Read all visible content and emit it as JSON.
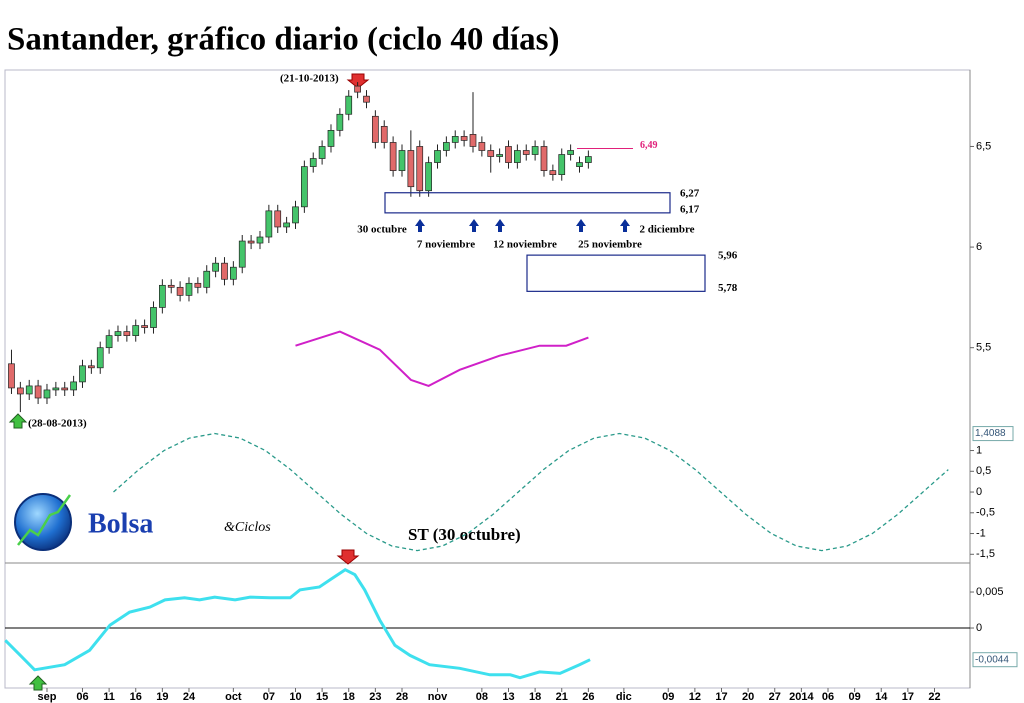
{
  "logo": {
    "name": "Bolsa",
    "suffix": "&Ciclos"
  },
  "chart_data": [
    {
      "type": "candlestick",
      "title": "Santander, gráfico diario (ciclo 40 días)",
      "up_color": "#44c46a",
      "down_color": "#e06a6a",
      "x": [
        -1,
        0,
        1,
        2,
        3,
        4,
        5,
        6,
        7,
        8,
        9,
        10,
        11,
        12,
        13,
        14,
        15,
        16,
        17,
        18,
        19,
        20,
        21,
        22,
        23,
        24,
        25,
        26,
        27,
        28,
        29,
        30,
        31,
        32,
        33,
        34,
        35,
        36,
        37,
        38,
        39,
        40,
        41,
        42,
        43,
        44,
        45,
        46,
        47,
        48,
        49,
        50,
        51,
        52,
        53,
        54,
        55,
        56,
        57,
        58,
        59,
        60,
        61,
        62,
        63,
        64
      ],
      "open": [
        5.42,
        5.3,
        5.27,
        5.31,
        5.25,
        5.29,
        5.3,
        5.29,
        5.33,
        5.41,
        5.4,
        5.5,
        5.56,
        5.58,
        5.56,
        5.61,
        5.6,
        5.7,
        5.81,
        5.8,
        5.76,
        5.82,
        5.8,
        5.88,
        5.92,
        5.84,
        5.9,
        6.03,
        6.02,
        6.05,
        6.18,
        6.1,
        6.12,
        6.2,
        6.4,
        6.44,
        6.5,
        6.58,
        6.66,
        6.8,
        6.75,
        6.65,
        6.6,
        6.52,
        6.38,
        6.48,
        6.5,
        6.28,
        6.42,
        6.48,
        6.52,
        6.55,
        6.56,
        6.52,
        6.48,
        6.45,
        6.5,
        6.42,
        6.48,
        6.46,
        6.5,
        6.38,
        6.36,
        6.46,
        6.4,
        6.42
      ],
      "high": [
        5.49,
        5.33,
        5.34,
        5.34,
        5.32,
        5.33,
        5.33,
        5.36,
        5.44,
        5.44,
        5.53,
        5.59,
        5.61,
        5.61,
        5.64,
        5.64,
        5.73,
        5.84,
        5.84,
        5.83,
        5.85,
        5.85,
        5.91,
        5.95,
        5.95,
        5.93,
        6.06,
        6.06,
        6.08,
        6.21,
        6.21,
        6.15,
        6.23,
        6.43,
        6.47,
        6.53,
        6.61,
        6.69,
        6.78,
        6.82,
        6.78,
        6.68,
        6.63,
        6.55,
        6.51,
        6.58,
        6.53,
        6.45,
        6.51,
        6.55,
        6.58,
        6.58,
        6.77,
        6.55,
        6.51,
        6.49,
        6.53,
        6.51,
        6.51,
        6.53,
        6.53,
        6.41,
        6.49,
        6.51,
        6.45,
        6.48
      ],
      "low": [
        5.27,
        5.18,
        5.24,
        5.22,
        5.22,
        5.26,
        5.26,
        5.26,
        5.3,
        5.37,
        5.37,
        5.47,
        5.53,
        5.53,
        5.53,
        5.57,
        5.57,
        5.67,
        5.77,
        5.73,
        5.73,
        5.77,
        5.77,
        5.85,
        5.81,
        5.81,
        5.87,
        5.99,
        5.99,
        6.02,
        6.07,
        6.07,
        6.09,
        6.17,
        6.37,
        6.41,
        6.47,
        6.55,
        6.63,
        6.74,
        6.69,
        6.49,
        6.49,
        6.35,
        6.35,
        6.25,
        6.25,
        6.25,
        6.39,
        6.45,
        6.49,
        6.5,
        6.47,
        6.45,
        6.37,
        6.42,
        6.39,
        6.39,
        6.43,
        6.43,
        6.35,
        6.33,
        6.33,
        6.43,
        6.37,
        6.39
      ],
      "close": [
        5.3,
        5.27,
        5.31,
        5.25,
        5.29,
        5.3,
        5.29,
        5.33,
        5.41,
        5.4,
        5.5,
        5.56,
        5.58,
        5.56,
        5.61,
        5.6,
        5.7,
        5.81,
        5.8,
        5.76,
        5.82,
        5.8,
        5.88,
        5.92,
        5.84,
        5.9,
        6.03,
        6.02,
        6.05,
        6.18,
        6.1,
        6.12,
        6.2,
        6.4,
        6.44,
        6.5,
        6.58,
        6.66,
        6.75,
        6.77,
        6.72,
        6.52,
        6.52,
        6.38,
        6.48,
        6.3,
        6.28,
        6.42,
        6.48,
        6.52,
        6.55,
        6.53,
        6.5,
        6.48,
        6.45,
        6.46,
        6.42,
        6.48,
        6.46,
        6.5,
        6.38,
        6.36,
        6.46,
        6.48,
        6.42,
        6.45
      ],
      "xlim": [
        -1.73,
        107
      ],
      "ylim": [
        4.43,
        6.88
      ],
      "yticks": [
        {
          "value": 6.5,
          "label": "6,5"
        },
        6,
        {
          "value": 5.5,
          "label": "5,5"
        }
      ],
      "overlay": {
        "color": "#d020c8",
        "x": [
          31,
          36,
          40.5,
          44,
          46,
          49.5,
          54,
          58.5,
          61.5,
          64
        ],
        "values": [
          5.51,
          5.58,
          5.49,
          5.34,
          5.31,
          5.39,
          5.46,
          5.51,
          5.51,
          5.55
        ]
      },
      "cycle": {
        "color": "#2a9a8a",
        "axis": "y2",
        "x": [
          10.5,
          13.35,
          16.2,
          19.05,
          21.9,
          24.75,
          27.6,
          30.45,
          33.3,
          36.15,
          39,
          41.85,
          44.7,
          47.55,
          50.4,
          53.25,
          56.1,
          58.95,
          61.8,
          64.65,
          67.5,
          70.35,
          73.2,
          76.05,
          78.9,
          81.75,
          84.6,
          87.45,
          90.3,
          93.15,
          96,
          98.85,
          101.7,
          104.55
        ],
        "values": [
          0,
          0.54,
          1.0,
          1.3,
          1.41,
          1.3,
          1.0,
          0.54,
          0,
          -0.54,
          -1.0,
          -1.3,
          -1.41,
          -1.3,
          -1.0,
          -0.54,
          0,
          0.54,
          1.0,
          1.3,
          1.41,
          1.3,
          1.0,
          0.54,
          0,
          -0.54,
          -1.0,
          -1.3,
          -1.41,
          -1.3,
          -1.0,
          -0.54,
          0,
          0.54
        ]
      },
      "y2lim": [
        -1.71,
        10.17
      ],
      "y2ticks": [
        1,
        {
          "value": 0.5,
          "label": "0,5"
        },
        0,
        {
          "value": -0.5,
          "label": "-0,5"
        },
        -1,
        {
          "value": -1.5,
          "label": "-1,5"
        }
      ],
      "y2_marker": {
        "value": 1.4088,
        "label": "1,4088"
      },
      "date_labels": [
        "(21-10-2013)",
        "(28-08-2013)"
      ],
      "cycle_dates": [
        "30 octubre",
        "7 noviembre",
        "12 noviembre",
        "25 noviembre",
        "2 diciembre"
      ],
      "target_zones": [
        {
          "high": {
            "value": 6.27,
            "label": "6,27"
          },
          "low": {
            "value": 6.17,
            "label": "6,17"
          }
        },
        {
          "high": {
            "value": 5.96,
            "label": "5,96"
          },
          "low": {
            "value": 5.78,
            "label": "5,78"
          }
        }
      ],
      "level": {
        "value": 6.49,
        "label": "6,49",
        "color": "#e0207a"
      }
    },
    {
      "type": "line",
      "title": "ST (30 octubre)",
      "color": "#3ee0ee",
      "x": [
        -1.7,
        0,
        1.6,
        5.0,
        7.8,
        10.1,
        12.3,
        14.6,
        16.3,
        18.5,
        20.2,
        21.9,
        24.2,
        25.9,
        28.1,
        30.4,
        31.5,
        33.7,
        34.9,
        36.6,
        37.7,
        38.8,
        40.5,
        42.2,
        43.9,
        46.1,
        49.5,
        52.9,
        55.2,
        56.3,
        58.5,
        60.8,
        63.0,
        64.2
      ],
      "values": [
        -0.0017,
        -0.0038,
        -0.0058,
        -0.0051,
        -0.0031,
        0.0004,
        0.0022,
        0.0029,
        0.0039,
        0.0042,
        0.0039,
        0.0043,
        0.0039,
        0.0043,
        0.0042,
        0.0042,
        0.0053,
        0.0057,
        0.0067,
        0.0081,
        0.0074,
        0.0053,
        0.0011,
        -0.0024,
        -0.0038,
        -0.0051,
        -0.0056,
        -0.0065,
        -0.0065,
        -0.0069,
        -0.0061,
        -0.0063,
        -0.0051,
        -0.0044
      ],
      "xlim": [
        -1.73,
        107
      ],
      "ylim": [
        -0.00833,
        0.00903
      ],
      "yticks": [
        {
          "value": 0.005,
          "label": "0,005"
        },
        0
      ],
      "last_marker": {
        "value": -0.0044,
        "label": "-0,0044"
      },
      "xticks": [
        {
          "value": 3,
          "label": "sep"
        },
        {
          "value": 7,
          "label": "06"
        },
        {
          "value": 10,
          "label": "11"
        },
        {
          "value": 13,
          "label": "16"
        },
        {
          "value": 16,
          "label": "19"
        },
        {
          "value": 19,
          "label": "24"
        },
        {
          "value": 24,
          "label": "oct"
        },
        {
          "value": 28,
          "label": "07"
        },
        {
          "value": 31,
          "label": "10"
        },
        {
          "value": 34,
          "label": "15"
        },
        {
          "value": 37,
          "label": "18"
        },
        {
          "value": 40,
          "label": "23"
        },
        {
          "value": 43,
          "label": "28"
        },
        {
          "value": 47,
          "label": "nov"
        },
        {
          "value": 52,
          "label": "08"
        },
        {
          "value": 55,
          "label": "13"
        },
        {
          "value": 58,
          "label": "18"
        },
        {
          "value": 61,
          "label": "21"
        },
        {
          "value": 64,
          "label": "26"
        },
        {
          "value": 68,
          "label": "dic"
        },
        {
          "value": 73,
          "label": "09"
        },
        {
          "value": 76,
          "label": "12"
        },
        {
          "value": 79,
          "label": "17"
        },
        {
          "value": 82,
          "label": "20"
        },
        {
          "value": 85,
          "label": "27"
        },
        {
          "value": 88,
          "label": "2014"
        },
        {
          "value": 91,
          "label": "06"
        },
        {
          "value": 94,
          "label": "09"
        },
        {
          "value": 97,
          "label": "14"
        },
        {
          "value": 100,
          "label": "17"
        },
        {
          "value": 103,
          "label": "22"
        }
      ]
    }
  ]
}
